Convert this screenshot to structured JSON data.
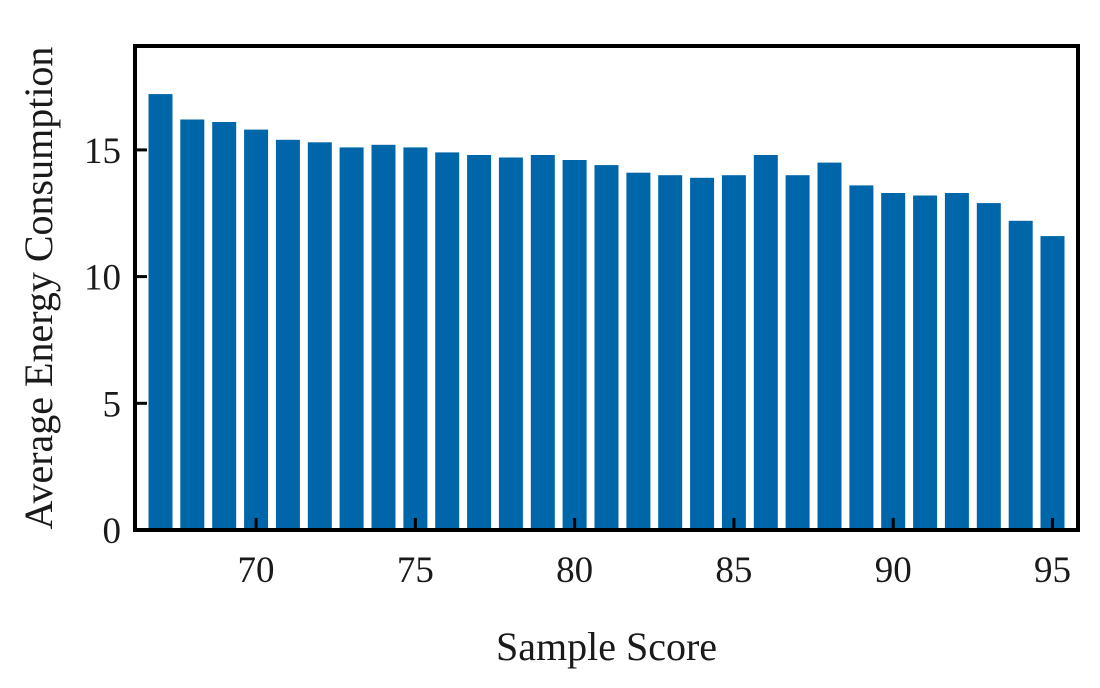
{
  "chart_data": {
    "type": "bar",
    "x": [
      67,
      68,
      69,
      70,
      71,
      72,
      73,
      74,
      75,
      76,
      77,
      78,
      79,
      80,
      81,
      82,
      83,
      84,
      85,
      86,
      87,
      88,
      89,
      90,
      91,
      92,
      93,
      94,
      95
    ],
    "values": [
      17.2,
      16.2,
      16.1,
      15.8,
      15.4,
      15.3,
      15.1,
      15.2,
      15.1,
      14.9,
      14.8,
      14.7,
      14.8,
      14.6,
      14.4,
      14.1,
      14.0,
      13.9,
      14.0,
      14.8,
      14.0,
      14.5,
      13.6,
      13.3,
      13.2,
      13.3,
      12.9,
      12.2,
      11.6
    ],
    "xlabel": "Sample Score",
    "ylabel": "Average Energy Consumption",
    "title": "",
    "xticks": [
      "70",
      "75",
      "80",
      "85",
      "90",
      "95"
    ],
    "yticks": [
      "0",
      "5",
      "10",
      "15"
    ],
    "xlim": [
      66.2,
      95.8
    ],
    "ylim": [
      0,
      19.1
    ],
    "bar_color": "#0066aa",
    "grid": false,
    "legend": "none"
  }
}
